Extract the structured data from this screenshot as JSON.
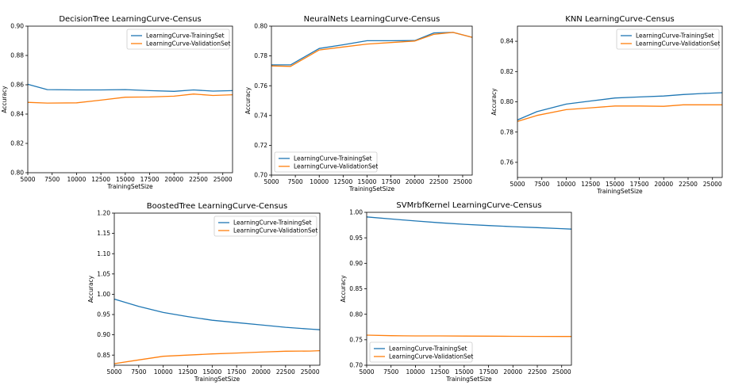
{
  "colors": {
    "train": "#1f77b4",
    "validation": "#ff7f0e"
  },
  "chart_data": [
    {
      "type": "line",
      "title": "DecisionTree LearningCurve-Census",
      "xlabel": "TrainingSetSize",
      "ylabel": "Accuracy",
      "xlim": [
        5000,
        26000
      ],
      "ylim": [
        0.8,
        0.9
      ],
      "xticks": [
        5000,
        7500,
        10000,
        12500,
        15000,
        17500,
        20000,
        22500,
        25000
      ],
      "yticks": [
        0.8,
        0.82,
        0.84,
        0.86,
        0.88,
        0.9
      ],
      "ydecimals": 2,
      "legend": "top-right",
      "x": [
        5000,
        7000,
        10000,
        12500,
        15000,
        17500,
        20000,
        22000,
        24000,
        26000
      ],
      "series": [
        {
          "name": "LearningCurve-TrainingSet",
          "color": "#1f77b4",
          "values": [
            0.8603,
            0.8567,
            0.8565,
            0.8565,
            0.8567,
            0.856,
            0.8555,
            0.8565,
            0.8557,
            0.856
          ]
        },
        {
          "name": "LearningCurve-ValidationSet",
          "color": "#ff7f0e",
          "values": [
            0.848,
            0.8475,
            0.8477,
            0.8495,
            0.8515,
            0.8517,
            0.8522,
            0.8537,
            0.8527,
            0.8532
          ]
        }
      ]
    },
    {
      "type": "line",
      "title": "NeuralNets LearningCurve-Census",
      "xlabel": "TrainingSetSize",
      "ylabel": "Accuracy",
      "xlim": [
        5000,
        26000
      ],
      "ylim": [
        0.7,
        0.8
      ],
      "xticks": [
        5000,
        7500,
        10000,
        12500,
        15000,
        17500,
        20000,
        22500,
        25000
      ],
      "yticks": [
        0.7,
        0.72,
        0.74,
        0.76,
        0.78,
        0.8
      ],
      "ydecimals": 2,
      "legend": "bottom-left",
      "x": [
        5000,
        7000,
        10000,
        12500,
        15000,
        17500,
        20000,
        22000,
        24000,
        26000
      ],
      "series": [
        {
          "name": "LearningCurve-TrainingSet",
          "color": "#1f77b4",
          "values": [
            0.774,
            0.774,
            0.785,
            0.7875,
            0.7902,
            0.7902,
            0.7903,
            0.7955,
            0.7958,
            0.7925
          ]
        },
        {
          "name": "LearningCurve-ValidationSet",
          "color": "#ff7f0e",
          "values": [
            0.7733,
            0.773,
            0.784,
            0.786,
            0.788,
            0.789,
            0.79,
            0.7945,
            0.7958,
            0.7925
          ]
        }
      ]
    },
    {
      "type": "line",
      "title": "KNN LearningCurve-Census",
      "xlabel": "TrainingSetSize",
      "ylabel": "Accuracy",
      "xlim": [
        5000,
        26000
      ],
      "ylim": [
        0.75,
        0.85
      ],
      "xticks": [
        5000,
        7500,
        10000,
        12500,
        15000,
        17500,
        20000,
        22500,
        25000
      ],
      "yticks": [
        0.76,
        0.78,
        0.8,
        0.82,
        0.84
      ],
      "ydecimals": 2,
      "legend": "top-right",
      "x": [
        5000,
        7000,
        10000,
        12500,
        15000,
        17500,
        20000,
        22000,
        24000,
        26000
      ],
      "series": [
        {
          "name": "LearningCurve-TrainingSet",
          "color": "#1f77b4",
          "values": [
            0.788,
            0.7935,
            0.7985,
            0.8005,
            0.8025,
            0.8032,
            0.8038,
            0.8048,
            0.8055,
            0.806
          ]
        },
        {
          "name": "LearningCurve-ValidationSet",
          "color": "#ff7f0e",
          "values": [
            0.787,
            0.791,
            0.7948,
            0.796,
            0.7972,
            0.7972,
            0.797,
            0.798,
            0.798,
            0.798
          ]
        }
      ]
    },
    {
      "type": "line",
      "title": "BoostedTree LearningCurve-Census",
      "xlabel": "TrainingSetSize",
      "ylabel": "Accuracy",
      "xlim": [
        5000,
        26000
      ],
      "ylim": [
        0.825,
        1.2
      ],
      "xticks": [
        5000,
        7500,
        10000,
        12500,
        15000,
        17500,
        20000,
        22500,
        25000
      ],
      "yticks": [
        0.85,
        0.9,
        0.95,
        1.0,
        1.05,
        1.1,
        1.15,
        1.2
      ],
      "ydecimals": 2,
      "legend": "top-right",
      "x": [
        5000,
        7500,
        10000,
        12500,
        15000,
        17500,
        20000,
        22500,
        25000,
        26000
      ],
      "series": [
        {
          "name": "LearningCurve-TrainingSet",
          "color": "#1f77b4",
          "values": [
            0.988,
            0.97,
            0.955,
            0.945,
            0.936,
            0.93,
            0.9245,
            0.9185,
            0.914,
            0.9125
          ]
        },
        {
          "name": "LearningCurve-ValidationSet",
          "color": "#ff7f0e",
          "values": [
            0.829,
            0.838,
            0.847,
            0.85,
            0.853,
            0.855,
            0.8575,
            0.8595,
            0.86,
            0.861
          ]
        }
      ]
    },
    {
      "type": "line",
      "title": "SVMrbfKernel LearningCurve-Census",
      "xlabel": "TrainingSetSize",
      "ylabel": "Accuracy",
      "xlim": [
        5000,
        26000
      ],
      "ylim": [
        0.7,
        1.0
      ],
      "xticks": [
        5000,
        7500,
        10000,
        12500,
        15000,
        17500,
        20000,
        22500,
        25000
      ],
      "yticks": [
        0.7,
        0.75,
        0.8,
        0.85,
        0.9,
        0.95,
        1.0
      ],
      "ydecimals": 2,
      "legend": "bottom-left",
      "x": [
        5000,
        7500,
        10000,
        12500,
        15000,
        17500,
        20000,
        22500,
        25000,
        26000
      ],
      "series": [
        {
          "name": "LearningCurve-TrainingSet",
          "color": "#1f77b4",
          "values": [
            0.991,
            0.987,
            0.983,
            0.9795,
            0.9765,
            0.974,
            0.9718,
            0.97,
            0.968,
            0.967
          ]
        },
        {
          "name": "LearningCurve-ValidationSet",
          "color": "#ff7f0e",
          "values": [
            0.759,
            0.758,
            0.7575,
            0.7575,
            0.7572,
            0.757,
            0.7568,
            0.7566,
            0.7565,
            0.7565
          ]
        }
      ]
    }
  ]
}
